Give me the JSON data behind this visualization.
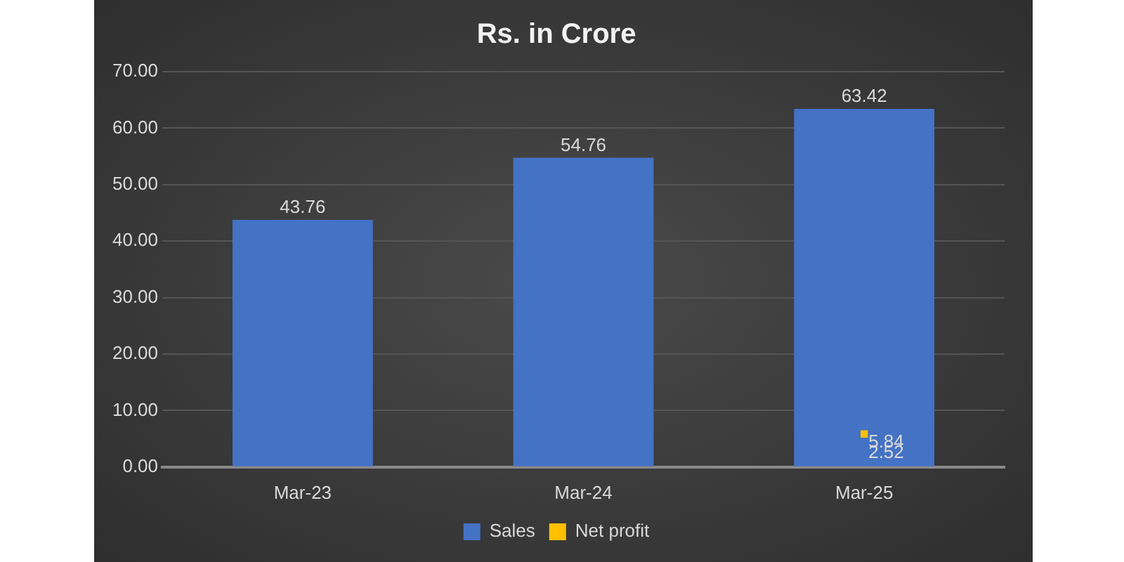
{
  "chart_data": {
    "type": "bar",
    "title": "Rs. in Crore",
    "categories": [
      "Mar-23",
      "Mar-24",
      "Mar-25"
    ],
    "series": [
      {
        "name": "Sales",
        "color": "#4472c4",
        "values": [
          43.76,
          54.76,
          63.42
        ]
      },
      {
        "name": "Net profit",
        "type": "line",
        "color": "#ffc000",
        "marker": "square",
        "values": [
          null,
          null,
          5.84
        ]
      }
    ],
    "annotations": [
      "2.52"
    ],
    "ylim": [
      0,
      70
    ],
    "yticks": [
      {
        "value": 0,
        "label": "0.00"
      },
      {
        "value": 10,
        "label": "10.00"
      },
      {
        "value": 20,
        "label": "20.00"
      },
      {
        "value": 30,
        "label": "30.00"
      },
      {
        "value": 40,
        "label": "40.00"
      },
      {
        "value": 50,
        "label": "50.00"
      },
      {
        "value": 60,
        "label": "60.00"
      },
      {
        "value": 70,
        "label": "70.00"
      }
    ],
    "grid": "y",
    "legend": "bottom",
    "data_labels": true
  }
}
